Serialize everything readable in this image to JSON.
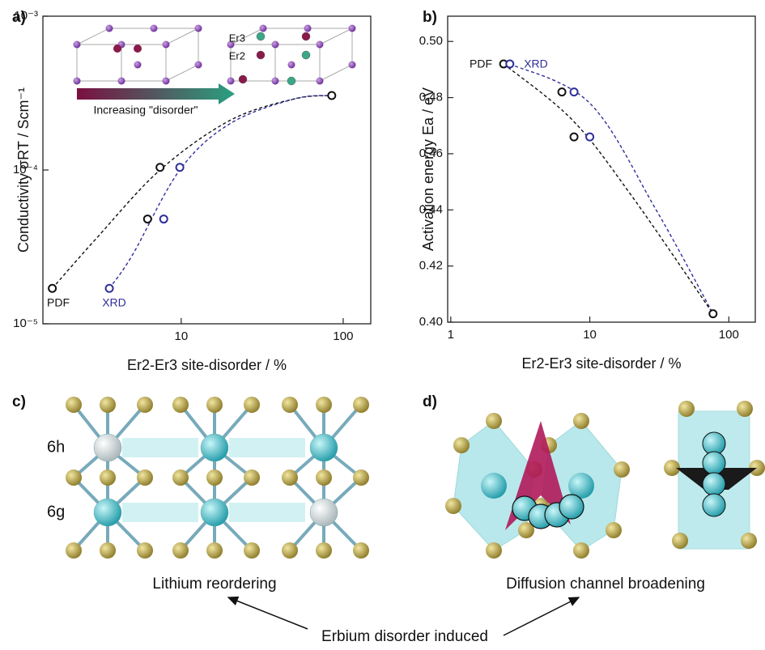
{
  "chart_data": [
    {
      "type": "scatter",
      "panel_label": "a)",
      "xlabel": "Er2-Er3 site-disorder / %",
      "ylabel": "Conductivity σRT / Scm⁻¹",
      "xlog": true,
      "ylog": true,
      "xlim": [
        1.4,
        148
      ],
      "ylim": [
        1e-05,
        0.001
      ],
      "xticks": [
        10,
        100
      ],
      "yticks": [
        {
          "value": 1e-05,
          "label": "10⁻⁵"
        },
        {
          "value": 0.0001,
          "label": "10⁻⁴"
        },
        {
          "value": 0.001,
          "label": "10⁻³"
        }
      ],
      "inset_labels": [
        "Er3",
        "Er2"
      ],
      "inset_arrow_label": "Increasing \"disorder\"",
      "series": [
        {
          "name": "PDF",
          "color": "#111111",
          "style": "markers",
          "x": [
            1.6,
            6.2,
            7.4,
            85
          ],
          "values": [
            1.7e-05,
            4.8e-05,
            0.000104,
            0.000305
          ]
        },
        {
          "name": "XRD",
          "color": "#2e2e9a",
          "style": "markers",
          "x": [
            3.6,
            7.8,
            9.8
          ],
          "values": [
            1.7e-05,
            4.8e-05,
            0.000104
          ]
        },
        {
          "color": "#111111",
          "style": "dashed",
          "x": [
            1.6,
            3,
            7.4,
            20,
            50,
            85
          ],
          "values": [
            1.7e-05,
            3.6e-05,
            0.0001,
            0.00021,
            0.00029,
            0.000305
          ]
        },
        {
          "color": "#2e2e9a",
          "style": "dashed",
          "x": [
            3.6,
            5,
            9.8,
            20,
            50,
            85
          ],
          "values": [
            1.7e-05,
            2.8e-05,
            0.0001,
            0.0002,
            0.00029,
            0.000305
          ]
        }
      ]
    },
    {
      "type": "scatter",
      "panel_label": "b)",
      "xlabel": "Er2-Er3 site-disorder / %",
      "ylabel": "Activation energy Ea / eV",
      "xlog": true,
      "ylog": false,
      "xlim": [
        0.95,
        155
      ],
      "ylim": [
        0.4,
        0.509
      ],
      "xticks": [
        1,
        10,
        100
      ],
      "yticks": [
        {
          "value": 0.4,
          "label": "0.40"
        },
        0.42,
        0.44,
        0.46,
        0.48,
        {
          "value": 0.5,
          "label": "0.50"
        }
      ],
      "series": [
        {
          "name": "PDF",
          "color": "#111111",
          "style": "markers",
          "x": [
            2.4,
            6.3,
            7.7,
            77
          ],
          "values": [
            0.492,
            0.482,
            0.466,
            0.403
          ]
        },
        {
          "name": "XRD",
          "color": "#2e2e9a",
          "style": "markers",
          "x": [
            2.66,
            7.7,
            10
          ],
          "values": [
            0.492,
            0.482,
            0.466
          ]
        },
        {
          "color": "#111111",
          "style": "dashed",
          "x": [
            2.4,
            7.5,
            20,
            77
          ],
          "values": [
            0.492,
            0.472,
            0.445,
            0.403
          ]
        },
        {
          "color": "#2e2e9a",
          "style": "dashed",
          "x": [
            2.66,
            10,
            30,
            77
          ],
          "values": [
            0.492,
            0.478,
            0.44,
            0.403
          ]
        }
      ]
    }
  ],
  "panels": {
    "c": {
      "label": "c)",
      "sites": [
        "6h",
        "6g"
      ],
      "caption": "Lithium reordering"
    },
    "d": {
      "label": "d)",
      "caption": "Diffusion channel broadening"
    },
    "footer": "Erbium disorder induced"
  }
}
